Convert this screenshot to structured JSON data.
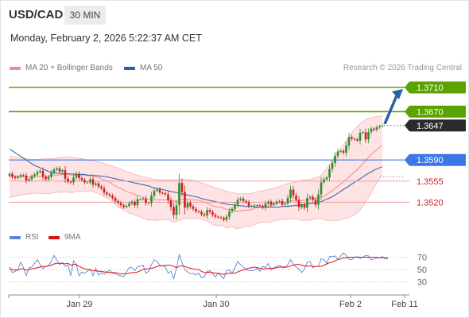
{
  "header": {
    "symbol": "USD/CAD",
    "timeframe": "30 MIN",
    "datetime": "Monday, February 2, 2026 5:22:37 AM CET"
  },
  "legend": {
    "items": [
      {
        "label": "MA 20 + Bollinger Bands",
        "color": "#f28b8b"
      },
      {
        "label": "MA 50",
        "color": "#2c5fa8"
      }
    ],
    "credit": "Research © 2026 Trading Central"
  },
  "rsi_legend": {
    "items": [
      {
        "label": "RSI",
        "color": "#5b84d6"
      },
      {
        "label": "9MA",
        "color": "#e01010"
      }
    ]
  },
  "colors": {
    "green_level": "#5aa300",
    "blue_level": "#3b78e7",
    "red_level": "#f0a0a0",
    "red_text": "#cc2222",
    "arrow": "#2c5fa8",
    "bb_fill": "#fde0e0",
    "candle_up": "#2e8b2e",
    "candle_down": "#cc1f1f"
  },
  "chart_data": [
    {
      "type": "candlestick",
      "title": "USD/CAD",
      "x_tick_labels": [
        "Jan 29",
        "Jan 30",
        "Feb 2",
        "Feb 11"
      ],
      "y_range": [
        1.3485,
        1.3735
      ],
      "series_names": [
        "MA 20 + Bollinger Bands",
        "MA 50"
      ],
      "levels": [
        {
          "value": 1.371,
          "label": "1.3710",
          "kind": "resistance"
        },
        {
          "value": 1.367,
          "label": "1.3670",
          "kind": "resistance"
        },
        {
          "value": 1.3647,
          "label": "1.3647",
          "kind": "last_price"
        },
        {
          "value": 1.359,
          "label": "1.3590",
          "kind": "pivot"
        },
        {
          "value": 1.3555,
          "label": "1.3555",
          "kind": "support"
        },
        {
          "value": 1.352,
          "label": "1.3520",
          "kind": "support"
        }
      ],
      "close": [
        1.3567,
        1.3562,
        1.356,
        1.3562,
        1.3565,
        1.3564,
        1.3556,
        1.3558,
        1.3563,
        1.3566,
        1.357,
        1.3572,
        1.3562,
        1.3558,
        1.3562,
        1.3569,
        1.3574,
        1.3576,
        1.3571,
        1.3573,
        1.3559,
        1.3554,
        1.3553,
        1.3561,
        1.3567,
        1.356,
        1.3557,
        1.3553,
        1.3553,
        1.3558,
        1.3549,
        1.3551,
        1.3546,
        1.3543,
        1.3536,
        1.3533,
        1.3531,
        1.3527,
        1.3522,
        1.3519,
        1.3515,
        1.3512,
        1.3514,
        1.3518,
        1.3521,
        1.3515,
        1.3525,
        1.3525,
        1.3526,
        1.3519,
        1.3519,
        1.3531,
        1.3539,
        1.3541,
        1.3536,
        1.3535,
        1.3533,
        1.3523,
        1.3512,
        1.3499,
        1.3515,
        1.3552,
        1.3537,
        1.3511,
        1.3519,
        1.3513,
        1.3509,
        1.3505,
        1.3504,
        1.35,
        1.3498,
        1.3507,
        1.3504,
        1.3499,
        1.3496,
        1.3495,
        1.3494,
        1.3491,
        1.3496,
        1.3505,
        1.3509,
        1.3516,
        1.3524,
        1.3526,
        1.3522,
        1.352,
        1.3514,
        1.3514,
        1.3515,
        1.3515,
        1.3514,
        1.3511,
        1.3518,
        1.3521,
        1.3516,
        1.3518,
        1.3521,
        1.3522,
        1.3516,
        1.3518,
        1.3527,
        1.3541,
        1.3531,
        1.3524,
        1.3512,
        1.3516,
        1.3511,
        1.3527,
        1.3529,
        1.3524,
        1.3516,
        1.3533,
        1.3553,
        1.3558,
        1.3561,
        1.3575,
        1.3585,
        1.3597,
        1.3604,
        1.3605,
        1.3602,
        1.3614,
        1.3628,
        1.3625,
        1.3624,
        1.3622,
        1.3635,
        1.3636,
        1.3624,
        1.3636,
        1.3642,
        1.364,
        1.3644,
        1.3646,
        1.3647
      ],
      "ma20": [
        1.3562,
        1.3563,
        1.3563,
        1.3563,
        1.3563,
        1.3563,
        1.3563,
        1.3562,
        1.3562,
        1.3563,
        1.3563,
        1.3563,
        1.3563,
        1.3563,
        1.3563,
        1.3564,
        1.3564,
        1.3565,
        1.3565,
        1.3566,
        1.3566,
        1.3566,
        1.3565,
        1.3565,
        1.3566,
        1.3565,
        1.3565,
        1.3565,
        1.3564,
        1.3564,
        1.3563,
        1.3562,
        1.3561,
        1.3559,
        1.3557,
        1.3555,
        1.3553,
        1.355,
        1.3547,
        1.3544,
        1.3543,
        1.354,
        1.3538,
        1.3536,
        1.3535,
        1.3533,
        1.3531,
        1.353,
        1.3528,
        1.3526,
        1.3525,
        1.3525,
        1.3524,
        1.3524,
        1.3524,
        1.3524,
        1.3524,
        1.3524,
        1.3523,
        1.3522,
        1.3522,
        1.3524,
        1.3525,
        1.3525,
        1.3525,
        1.3525,
        1.3524,
        1.3524,
        1.3523,
        1.3522,
        1.352,
        1.3519,
        1.3517,
        1.3514,
        1.3513,
        1.3512,
        1.3512,
        1.351,
        1.3508,
        1.3508,
        1.3508,
        1.3506,
        1.3505,
        1.3506,
        1.3506,
        1.3507,
        1.3507,
        1.3508,
        1.351,
        1.3511,
        1.3512,
        1.3513,
        1.3513,
        1.3514,
        1.3515,
        1.3516,
        1.3518,
        1.3519,
        1.352,
        1.352,
        1.3521,
        1.3522,
        1.3523,
        1.3523,
        1.3523,
        1.3523,
        1.3523,
        1.3524,
        1.3524,
        1.3525,
        1.3526,
        1.3527,
        1.3529,
        1.353,
        1.3533,
        1.3536,
        1.3539,
        1.3543,
        1.3546,
        1.355,
        1.3554,
        1.3558,
        1.3562,
        1.3566,
        1.357,
        1.3574,
        1.3579,
        1.3584,
        1.3589,
        1.3594,
        1.3599,
        1.3603,
        1.3607,
        1.3611,
        1.3614
      ],
      "bb_upper": [
        1.3596,
        1.3596,
        1.3595,
        1.3594,
        1.3594,
        1.3593,
        1.3592,
        1.3591,
        1.3591,
        1.3591,
        1.3591,
        1.3591,
        1.3592,
        1.3592,
        1.3592,
        1.3592,
        1.3592,
        1.3593,
        1.3594,
        1.3594,
        1.3595,
        1.3595,
        1.3594,
        1.3594,
        1.3593,
        1.3593,
        1.3592,
        1.3591,
        1.359,
        1.3589,
        1.3589,
        1.3588,
        1.3587,
        1.3586,
        1.3584,
        1.3583,
        1.3581,
        1.358,
        1.3578,
        1.3577,
        1.3575,
        1.3573,
        1.3571,
        1.357,
        1.3568,
        1.3566,
        1.3565,
        1.3563,
        1.3562,
        1.3561,
        1.356,
        1.3559,
        1.3558,
        1.3558,
        1.3557,
        1.3557,
        1.3557,
        1.3557,
        1.3557,
        1.3557,
        1.3557,
        1.3558,
        1.3558,
        1.3558,
        1.3558,
        1.3557,
        1.3556,
        1.3555,
        1.3553,
        1.3552,
        1.3551,
        1.3549,
        1.3547,
        1.3546,
        1.3544,
        1.3543,
        1.3541,
        1.354,
        1.3538,
        1.3537,
        1.3536,
        1.3535,
        1.3534,
        1.3534,
        1.3534,
        1.3534,
        1.3534,
        1.3535,
        1.3536,
        1.3537,
        1.3538,
        1.3539,
        1.354,
        1.3541,
        1.3542,
        1.3543,
        1.3545,
        1.3546,
        1.3548,
        1.3549,
        1.3551,
        1.3552,
        1.3553,
        1.3554,
        1.3555,
        1.3556,
        1.3557,
        1.3557,
        1.3558,
        1.3559,
        1.356,
        1.3562,
        1.3565,
        1.357,
        1.3576,
        1.3582,
        1.3589,
        1.3596,
        1.3602,
        1.3609,
        1.3615,
        1.3622,
        1.3628,
        1.3635,
        1.3641,
        1.3646,
        1.365,
        1.3654,
        1.3657,
        1.3659,
        1.366,
        1.3661,
        1.3662,
        1.3662,
        1.3663
      ],
      "bb_lower": [
        1.3528,
        1.3529,
        1.353,
        1.3531,
        1.3532,
        1.3533,
        1.3533,
        1.3534,
        1.3534,
        1.3535,
        1.3535,
        1.3535,
        1.3534,
        1.3534,
        1.3534,
        1.3535,
        1.3536,
        1.3537,
        1.3536,
        1.3537,
        1.3537,
        1.3537,
        1.3536,
        1.3536,
        1.3539,
        1.3538,
        1.3538,
        1.3538,
        1.3538,
        1.3539,
        1.3538,
        1.3536,
        1.3534,
        1.3532,
        1.3529,
        1.3527,
        1.3525,
        1.3521,
        1.3517,
        1.3512,
        1.351,
        1.3507,
        1.3505,
        1.3502,
        1.3501,
        1.3499,
        1.3497,
        1.3496,
        1.3494,
        1.3492,
        1.349,
        1.3491,
        1.349,
        1.349,
        1.3491,
        1.3491,
        1.3491,
        1.3491,
        1.3489,
        1.3487,
        1.3488,
        1.349,
        1.3492,
        1.3493,
        1.3493,
        1.3494,
        1.3493,
        1.3493,
        1.3493,
        1.3492,
        1.349,
        1.3489,
        1.3487,
        1.3483,
        1.3482,
        1.3481,
        1.3482,
        1.348,
        1.3477,
        1.3479,
        1.348,
        1.3477,
        1.3476,
        1.3478,
        1.3478,
        1.3481,
        1.348,
        1.3481,
        1.3483,
        1.3485,
        1.3486,
        1.3487,
        1.3486,
        1.3487,
        1.3487,
        1.3489,
        1.349,
        1.3491,
        1.3492,
        1.3491,
        1.3492,
        1.3492,
        1.3493,
        1.3492,
        1.3491,
        1.349,
        1.349,
        1.349,
        1.349,
        1.3492,
        1.3492,
        1.3493,
        1.3493,
        1.3491,
        1.349,
        1.349,
        1.3489,
        1.349,
        1.349,
        1.3491,
        1.3493,
        1.3494,
        1.3495,
        1.3497,
        1.3499,
        1.3502,
        1.3507,
        1.3513,
        1.352,
        1.3527,
        1.3536,
        1.3544,
        1.3552,
        1.3559,
        1.3565
      ],
      "ma50": [
        1.3608,
        1.3605,
        1.3602,
        1.3599,
        1.3596,
        1.3593,
        1.359,
        1.3587,
        1.3584,
        1.3581,
        1.3579,
        1.3577,
        1.3575,
        1.3573,
        1.3571,
        1.357,
        1.3569,
        1.3568,
        1.3568,
        1.3567,
        1.3567,
        1.3567,
        1.3567,
        1.3567,
        1.3566,
        1.3566,
        1.3566,
        1.3566,
        1.3565,
        1.3565,
        1.3565,
        1.3564,
        1.3564,
        1.3563,
        1.3563,
        1.3562,
        1.3561,
        1.356,
        1.3559,
        1.3558,
        1.3557,
        1.3556,
        1.3555,
        1.3554,
        1.3553,
        1.3552,
        1.3551,
        1.355,
        1.3549,
        1.3548,
        1.3547,
        1.3545,
        1.3544,
        1.3543,
        1.3542,
        1.3541,
        1.354,
        1.3539,
        1.3538,
        1.3537,
        1.3536,
        1.3535,
        1.3534,
        1.3533,
        1.3532,
        1.3531,
        1.353,
        1.3529,
        1.3528,
        1.3526,
        1.3525,
        1.3524,
        1.3523,
        1.3522,
        1.3521,
        1.352,
        1.3519,
        1.3518,
        1.3517,
        1.3516,
        1.3516,
        1.3515,
        1.3515,
        1.3514,
        1.3514,
        1.3513,
        1.3513,
        1.3513,
        1.3512,
        1.3512,
        1.3512,
        1.3512,
        1.3512,
        1.3512,
        1.3512,
        1.3512,
        1.3512,
        1.3512,
        1.3513,
        1.3513,
        1.3513,
        1.3514,
        1.3514,
        1.3515,
        1.3515,
        1.3516,
        1.3516,
        1.3517,
        1.3518,
        1.3518,
        1.3519,
        1.352,
        1.3521,
        1.3523,
        1.3525,
        1.3527,
        1.3529,
        1.3532,
        1.3535,
        1.3538,
        1.3541,
        1.3544,
        1.3547,
        1.355,
        1.3553,
        1.3556,
        1.3559,
        1.3562,
        1.3565,
        1.3568,
        1.357,
        1.3573,
        1.3575,
        1.3577,
        1.3579
      ],
      "rsi": [
        54,
        45,
        47,
        50,
        62,
        53,
        40,
        53,
        54,
        60,
        66,
        58,
        51,
        55,
        56,
        63,
        73,
        65,
        58,
        61,
        55,
        57,
        40,
        64,
        58,
        40,
        46,
        44,
        47,
        51,
        40,
        52,
        41,
        45,
        42,
        46,
        49,
        44,
        43,
        41,
        40,
        38,
        46,
        53,
        53,
        48,
        55,
        55,
        57,
        44,
        47,
        58,
        66,
        63,
        57,
        56,
        54,
        44,
        47,
        35,
        52,
        74,
        61,
        50,
        46,
        43,
        44,
        41,
        44,
        37,
        38,
        47,
        48,
        43,
        38,
        44,
        40,
        35,
        48,
        49,
        44,
        53,
        63,
        58,
        54,
        50,
        48,
        48,
        49,
        52,
        47,
        55,
        53,
        60,
        49,
        53,
        55,
        57,
        53,
        53,
        58,
        66,
        59,
        54,
        51,
        45,
        51,
        62,
        63,
        53,
        55,
        55,
        67,
        66,
        60,
        71,
        71,
        72,
        66,
        72,
        77,
        73,
        67,
        66,
        70,
        71,
        68,
        70,
        73,
        72,
        66,
        67,
        69,
        69,
        71,
        67,
        68
      ],
      "rsi_ma9": [
        51,
        50,
        49,
        49,
        51,
        51,
        49,
        50,
        51,
        52,
        53,
        54,
        55,
        55,
        56,
        57,
        59,
        60,
        60,
        60,
        59,
        60,
        57,
        58,
        58,
        55,
        53,
        51,
        50,
        49,
        48,
        48,
        47,
        47,
        46,
        46,
        45,
        45,
        45,
        44,
        43,
        43,
        43,
        44,
        45,
        45,
        46,
        48,
        50,
        51,
        51,
        52,
        53,
        55,
        56,
        56,
        57,
        57,
        57,
        55,
        53,
        55,
        56,
        55,
        53,
        52,
        51,
        50,
        50,
        47,
        45,
        45,
        46,
        45,
        44,
        44,
        43,
        42,
        43,
        44,
        44,
        44,
        46,
        48,
        49,
        51,
        52,
        53,
        54,
        53,
        52,
        51,
        51,
        52,
        52,
        52,
        53,
        54,
        54,
        54,
        54,
        56,
        57,
        58,
        58,
        57,
        56,
        55,
        56,
        55,
        55,
        55,
        55,
        57,
        59,
        61,
        62,
        64,
        66,
        67,
        69,
        69,
        70,
        70,
        70,
        70,
        70,
        70,
        70,
        70,
        70,
        70,
        70,
        69,
        69,
        69,
        69
      ],
      "rsi_ticks": [
        30,
        50,
        70
      ]
    }
  ]
}
